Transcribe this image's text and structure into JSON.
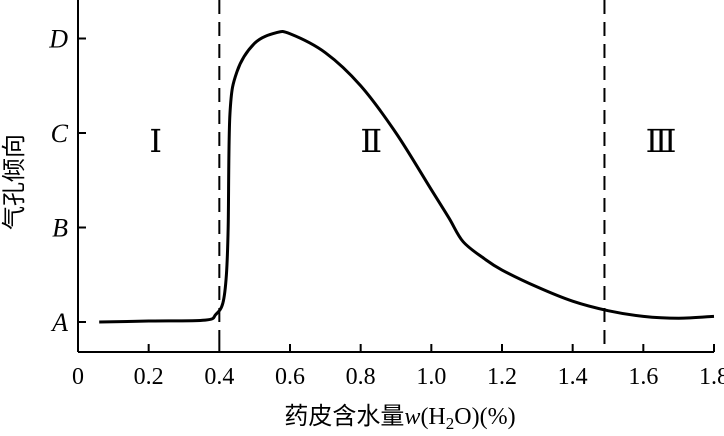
{
  "chart_data": {
    "type": "line",
    "xlabel": "药皮含水量",
    "xlabel_var": "w",
    "xlabel_paren": "(H",
    "xlabel_sub": "2",
    "xlabel_tail": "O)(%)",
    "ylabel": "气孔倾向",
    "xlim": [
      0,
      1.8
    ],
    "ylim": [
      0,
      3.3
    ],
    "x_ticks": [
      {
        "value": 0,
        "label": "0"
      },
      {
        "value": 0.2,
        "label": "0.2"
      },
      {
        "value": 0.4,
        "label": "0.4"
      },
      {
        "value": 0.6,
        "label": "0.6"
      },
      {
        "value": 0.8,
        "label": "0.8"
      },
      {
        "value": 1.0,
        "label": "1.0"
      },
      {
        "value": 1.2,
        "label": "1.2"
      },
      {
        "value": 1.4,
        "label": "1.4"
      },
      {
        "value": 1.6,
        "label": "1.6"
      },
      {
        "value": 1.8,
        "label": "1.8"
      }
    ],
    "y_ticks": [
      {
        "value": 0,
        "label": "A"
      },
      {
        "value": 1,
        "label": "B"
      },
      {
        "value": 2,
        "label": "C"
      },
      {
        "value": 3,
        "label": "D"
      }
    ],
    "dividers": [
      0.4,
      1.49
    ],
    "regions": [
      {
        "label": "Ⅰ",
        "x": 0.22,
        "y": 1.8
      },
      {
        "label": "Ⅱ",
        "x": 0.83,
        "y": 1.8
      },
      {
        "label": "Ⅲ",
        "x": 1.65,
        "y": 1.8
      }
    ],
    "series": [
      {
        "x": [
          0.06,
          0.2,
          0.36,
          0.39,
          0.41,
          0.42,
          0.425,
          0.43,
          0.45,
          0.5,
          0.56,
          0.6,
          0.7,
          0.8,
          0.9,
          1.0,
          1.05,
          1.09,
          1.15,
          1.2,
          1.3,
          1.4,
          1.5,
          1.6,
          1.7,
          1.8
        ],
        "y": [
          0,
          0.01,
          0.02,
          0.08,
          0.2,
          0.5,
          1.0,
          2.2,
          2.65,
          2.95,
          3.06,
          3.05,
          2.85,
          2.5,
          2.0,
          1.4,
          1.1,
          0.85,
          0.67,
          0.55,
          0.37,
          0.22,
          0.12,
          0.06,
          0.04,
          0.06
        ]
      }
    ]
  }
}
